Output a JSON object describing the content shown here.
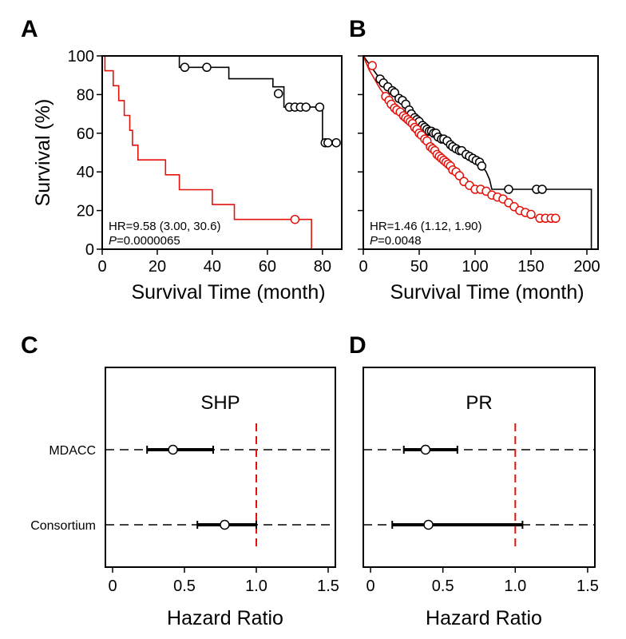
{
  "chart_data": [
    {
      "panel": "A",
      "type": "line",
      "subtype": "kaplan-meier",
      "xlabel": "Survival Time (month)",
      "ylabel": "Survival (%)",
      "xlim": [
        0,
        87
      ],
      "ylim": [
        0,
        100
      ],
      "xticks": [
        0,
        20,
        40,
        60,
        80
      ],
      "yticks": [
        0,
        20,
        40,
        60,
        80,
        100
      ],
      "annotation": {
        "hr": "HR=9.58 (3.00, 30.6)",
        "p_label": "P",
        "p_value": "=0.0000065"
      },
      "series": [
        {
          "color": "#000000",
          "steps": [
            [
              0,
              100
            ],
            [
              28,
              100
            ],
            [
              28,
              94.1
            ],
            [
              46,
              94.1
            ],
            [
              46,
              88.2
            ],
            [
              62,
              88.2
            ],
            [
              62,
              84
            ],
            [
              66,
              84
            ],
            [
              66,
              73.5
            ],
            [
              80,
              73.5
            ],
            [
              80,
              55.1
            ],
            [
              85,
              55.1
            ]
          ],
          "censored": [
            [
              30,
              94.1
            ],
            [
              38,
              94.1
            ],
            [
              64,
              80.5
            ],
            [
              68,
              73.5
            ],
            [
              70,
              73.5
            ],
            [
              72,
              73.5
            ],
            [
              74,
              73.5
            ],
            [
              79,
              73.5
            ],
            [
              81,
              55.1
            ],
            [
              82,
              55.1
            ],
            [
              85,
              55.1
            ]
          ]
        },
        {
          "color": "#e3120b",
          "steps": [
            [
              0,
              100
            ],
            [
              1,
              100
            ],
            [
              1,
              92.3
            ],
            [
              4,
              92.3
            ],
            [
              4,
              84.6
            ],
            [
              6,
              84.6
            ],
            [
              6,
              76.9
            ],
            [
              8,
              76.9
            ],
            [
              8,
              69.2
            ],
            [
              10,
              69.2
            ],
            [
              10,
              61.5
            ],
            [
              11,
              61.5
            ],
            [
              11,
              53.8
            ],
            [
              13,
              53.8
            ],
            [
              13,
              46.2
            ],
            [
              23,
              46.2
            ],
            [
              23,
              38.5
            ],
            [
              28,
              38.5
            ],
            [
              28,
              30.8
            ],
            [
              40,
              30.8
            ],
            [
              40,
              23.1
            ],
            [
              48,
              23.1
            ],
            [
              48,
              15.4
            ],
            [
              76,
              15.4
            ],
            [
              76,
              0
            ]
          ],
          "censored": [
            [
              70,
              15.4
            ]
          ]
        }
      ]
    },
    {
      "panel": "B",
      "type": "line",
      "subtype": "kaplan-meier",
      "xlabel": "Survival Time (month)",
      "ylabel": "",
      "xlim": [
        0,
        210
      ],
      "ylim": [
        0,
        100
      ],
      "xticks": [
        0,
        50,
        100,
        150,
        200
      ],
      "yticks": [
        0,
        20,
        40,
        60,
        80,
        100
      ],
      "annotation": {
        "hr": "HR=1.46 (1.12, 1.90)",
        "p_label": "P",
        "p_value": "=0.0048"
      },
      "series": [
        {
          "color": "#000000",
          "steps": [
            [
              0,
              100
            ],
            [
              5,
              96
            ],
            [
              10,
              92
            ],
            [
              15,
              88
            ],
            [
              20,
              84
            ],
            [
              25,
              81
            ],
            [
              30,
              78
            ],
            [
              35,
              75
            ],
            [
              40,
              71
            ],
            [
              45,
              68
            ],
            [
              50,
              65
            ],
            [
              55,
              63
            ],
            [
              60,
              61
            ],
            [
              65,
              59
            ],
            [
              70,
              57
            ],
            [
              75,
              56
            ],
            [
              80,
              53
            ],
            [
              85,
              51
            ],
            [
              90,
              50
            ],
            [
              95,
              48
            ],
            [
              100,
              46
            ],
            [
              105,
              44
            ],
            [
              110,
              40
            ],
            [
              113,
              36
            ],
            [
              115,
              31
            ],
            [
              204,
              31
            ],
            [
              204,
              0
            ]
          ],
          "censored": [
            [
              15,
              88
            ],
            [
              18,
              86
            ],
            [
              22,
              84
            ],
            [
              26,
              82
            ],
            [
              28,
              81
            ],
            [
              32,
              78
            ],
            [
              35,
              77
            ],
            [
              38,
              75
            ],
            [
              41,
              72
            ],
            [
              43,
              70
            ],
            [
              46,
              68
            ],
            [
              48,
              67
            ],
            [
              50,
              66
            ],
            [
              53,
              64
            ],
            [
              55,
              63
            ],
            [
              57,
              62
            ],
            [
              59,
              61
            ],
            [
              61,
              61
            ],
            [
              63,
              60
            ],
            [
              65,
              60
            ],
            [
              67,
              58
            ],
            [
              70,
              57
            ],
            [
              72,
              57
            ],
            [
              75,
              56
            ],
            [
              78,
              54
            ],
            [
              80,
              53
            ],
            [
              83,
              52
            ],
            [
              86,
              51
            ],
            [
              88,
              51
            ],
            [
              92,
              49
            ],
            [
              95,
              48
            ],
            [
              98,
              47
            ],
            [
              101,
              46
            ],
            [
              104,
              45
            ],
            [
              106,
              43
            ],
            [
              130,
              31
            ],
            [
              155,
              31
            ],
            [
              160,
              31
            ]
          ]
        },
        {
          "color": "#e3120b",
          "steps": [
            [
              0,
              100
            ],
            [
              5,
              93
            ],
            [
              10,
              88
            ],
            [
              15,
              83
            ],
            [
              20,
              79
            ],
            [
              25,
              75
            ],
            [
              30,
              72
            ],
            [
              35,
              70
            ],
            [
              40,
              67
            ],
            [
              45,
              64
            ],
            [
              50,
              60
            ],
            [
              55,
              57
            ],
            [
              60,
              53
            ],
            [
              65,
              50
            ],
            [
              70,
              47
            ],
            [
              75,
              44
            ],
            [
              80,
              41
            ],
            [
              85,
              38
            ],
            [
              90,
              35
            ],
            [
              95,
              33
            ],
            [
              100,
              31
            ],
            [
              110,
              30
            ],
            [
              120,
              27
            ],
            [
              130,
              24
            ],
            [
              140,
              20
            ],
            [
              150,
              18
            ],
            [
              155,
              16
            ],
            [
              176,
              16
            ]
          ],
          "censored": [
            [
              8,
              95
            ],
            [
              20,
              79
            ],
            [
              23,
              77
            ],
            [
              25,
              75
            ],
            [
              28,
              73
            ],
            [
              30,
              72
            ],
            [
              33,
              71
            ],
            [
              36,
              69
            ],
            [
              38,
              68
            ],
            [
              40,
              67
            ],
            [
              42,
              66
            ],
            [
              44,
              65
            ],
            [
              46,
              63
            ],
            [
              48,
              62
            ],
            [
              50,
              60
            ],
            [
              52,
              59
            ],
            [
              55,
              57
            ],
            [
              57,
              56
            ],
            [
              60,
              53
            ],
            [
              62,
              52
            ],
            [
              64,
              51
            ],
            [
              66,
              49
            ],
            [
              68,
              48
            ],
            [
              70,
              47
            ],
            [
              72,
              46
            ],
            [
              74,
              45
            ],
            [
              76,
              44
            ],
            [
              78,
              43
            ],
            [
              80,
              41
            ],
            [
              83,
              40
            ],
            [
              86,
              38
            ],
            [
              90,
              35
            ],
            [
              95,
              33
            ],
            [
              100,
              31
            ],
            [
              105,
              31
            ],
            [
              110,
              30
            ],
            [
              115,
              28
            ],
            [
              120,
              27
            ],
            [
              125,
              26
            ],
            [
              130,
              24
            ],
            [
              135,
              22
            ],
            [
              140,
              20
            ],
            [
              145,
              19
            ],
            [
              150,
              18
            ],
            [
              158,
              16
            ],
            [
              163,
              16
            ],
            [
              168,
              16
            ],
            [
              172,
              16
            ]
          ]
        }
      ]
    },
    {
      "panel": "C",
      "type": "scatter",
      "subtype": "forest",
      "title": "SHP",
      "xlabel": "Hazard Ratio",
      "xlim": [
        -0.05,
        1.55
      ],
      "xticks": [
        "0",
        "0.5",
        "1.0",
        "1.5"
      ],
      "xtick_values": [
        0,
        0.5,
        1.0,
        1.5
      ],
      "reference_line": 1.0,
      "rows": [
        {
          "label": "MDACC",
          "hr": 0.42,
          "ci_low": 0.24,
          "ci_high": 0.7
        },
        {
          "label": "Consortium",
          "hr": 0.78,
          "ci_low": 0.59,
          "ci_high": 1.0
        }
      ]
    },
    {
      "panel": "D",
      "type": "scatter",
      "subtype": "forest",
      "title": "PR",
      "xlabel": "Hazard Ratio",
      "xlim": [
        -0.05,
        1.55
      ],
      "xticks": [
        "0",
        "0.5",
        "1.0",
        "1.5"
      ],
      "xtick_values": [
        0,
        0.5,
        1.0,
        1.5
      ],
      "reference_line": 1.0,
      "rows": [
        {
          "label": "",
          "hr": 0.38,
          "ci_low": 0.23,
          "ci_high": 0.6
        },
        {
          "label": "",
          "hr": 0.4,
          "ci_low": 0.15,
          "ci_high": 1.05
        }
      ]
    }
  ],
  "colors": {
    "black": "#000000",
    "red": "#e3120b",
    "white": "#ffffff"
  }
}
